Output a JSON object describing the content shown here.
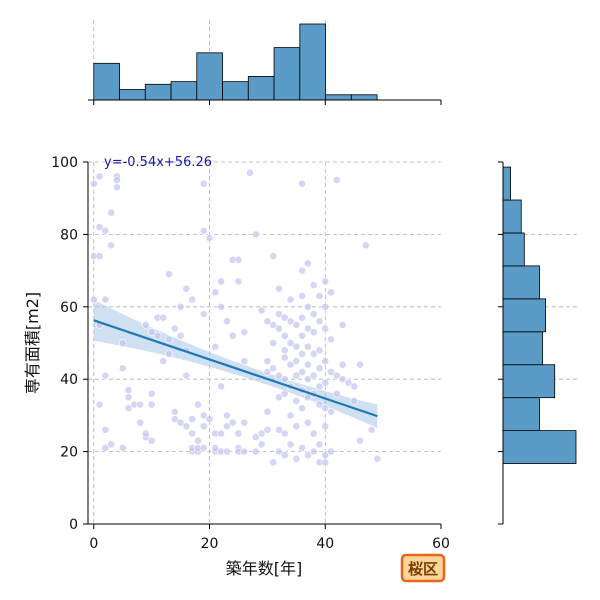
{
  "chart_data": {
    "type": "scatter",
    "title": "",
    "xlabel": "築年数[年]",
    "ylabel": "専有面積[m2]",
    "xlim": [
      -1,
      60
    ],
    "ylim": [
      0,
      100
    ],
    "xticks": [
      0,
      20,
      40,
      60
    ],
    "yticks": [
      0,
      20,
      40,
      60,
      80,
      100
    ],
    "grid": true,
    "regression": {
      "equation": "y=-0.54x+56.26",
      "slope": -0.54,
      "intercept": 56.26,
      "x_range": [
        0,
        49
      ]
    },
    "points": [
      [
        0,
        94
      ],
      [
        1,
        96
      ],
      [
        1,
        82
      ],
      [
        2,
        81
      ],
      [
        0,
        74
      ],
      [
        1,
        74
      ],
      [
        2,
        62
      ],
      [
        0,
        62
      ],
      [
        1,
        33
      ],
      [
        2,
        41
      ],
      [
        2,
        26
      ],
      [
        2,
        21
      ],
      [
        3,
        22
      ],
      [
        1,
        55
      ],
      [
        3,
        86
      ],
      [
        4,
        96
      ],
      [
        4,
        95
      ],
      [
        4,
        93
      ],
      [
        3,
        77
      ],
      [
        5,
        50
      ],
      [
        5,
        43
      ],
      [
        5,
        21
      ],
      [
        6,
        37
      ],
      [
        6,
        32
      ],
      [
        6,
        35
      ],
      [
        7,
        33
      ],
      [
        8,
        33
      ],
      [
        8,
        28
      ],
      [
        9,
        24
      ],
      [
        9,
        25
      ],
      [
        10,
        23
      ],
      [
        10,
        33
      ],
      [
        10,
        36
      ],
      [
        9,
        55
      ],
      [
        10,
        53
      ],
      [
        11,
        52
      ],
      [
        11,
        57
      ],
      [
        12,
        57
      ],
      [
        12,
        45
      ],
      [
        13,
        47
      ],
      [
        13,
        51
      ],
      [
        13,
        69
      ],
      [
        14,
        54
      ],
      [
        14,
        31
      ],
      [
        14,
        29
      ],
      [
        15,
        28
      ],
      [
        15,
        52
      ],
      [
        15,
        60
      ],
      [
        16,
        65
      ],
      [
        16,
        41
      ],
      [
        16,
        48
      ],
      [
        16,
        27
      ],
      [
        17,
        20
      ],
      [
        17,
        21
      ],
      [
        17,
        25
      ],
      [
        17,
        29
      ],
      [
        17,
        62
      ],
      [
        18,
        33
      ],
      [
        18,
        23
      ],
      [
        18,
        20
      ],
      [
        18,
        21
      ],
      [
        19,
        21
      ],
      [
        19,
        58
      ],
      [
        19,
        94
      ],
      [
        19,
        81
      ],
      [
        19,
        30
      ],
      [
        19,
        27
      ],
      [
        20,
        79
      ],
      [
        20,
        29
      ],
      [
        21,
        20
      ],
      [
        21,
        21
      ],
      [
        21,
        25
      ],
      [
        21,
        49
      ],
      [
        21,
        64
      ],
      [
        22,
        67
      ],
      [
        22,
        60
      ],
      [
        22,
        38
      ],
      [
        22,
        25
      ],
      [
        22,
        20
      ],
      [
        23,
        27
      ],
      [
        23,
        30
      ],
      [
        23,
        20
      ],
      [
        23,
        56
      ],
      [
        24,
        73
      ],
      [
        24,
        28
      ],
      [
        24,
        52
      ],
      [
        25,
        73
      ],
      [
        25,
        67
      ],
      [
        25,
        21
      ],
      [
        25,
        20
      ],
      [
        25,
        25
      ],
      [
        26,
        28
      ],
      [
        26,
        20
      ],
      [
        26,
        45
      ],
      [
        26,
        53
      ],
      [
        27,
        97
      ],
      [
        28,
        80
      ],
      [
        28,
        24
      ],
      [
        28,
        20
      ],
      [
        29,
        25
      ],
      [
        29,
        59
      ],
      [
        29,
        22
      ],
      [
        30,
        31
      ],
      [
        30,
        26
      ],
      [
        30,
        42
      ],
      [
        30,
        45
      ],
      [
        30,
        56
      ],
      [
        31,
        74
      ],
      [
        31,
        55
      ],
      [
        31,
        50
      ],
      [
        31,
        43
      ],
      [
        31,
        17
      ],
      [
        32,
        65
      ],
      [
        32,
        58
      ],
      [
        32,
        54
      ],
      [
        32,
        41
      ],
      [
        32,
        35
      ],
      [
        32,
        26
      ],
      [
        32,
        20
      ],
      [
        33,
        57
      ],
      [
        33,
        52
      ],
      [
        33,
        48
      ],
      [
        33,
        46
      ],
      [
        33,
        40
      ],
      [
        33,
        36
      ],
      [
        33,
        25
      ],
      [
        33,
        19
      ],
      [
        34,
        62
      ],
      [
        34,
        56
      ],
      [
        34,
        50
      ],
      [
        34,
        44
      ],
      [
        34,
        38
      ],
      [
        34,
        30
      ],
      [
        34,
        22
      ],
      [
        35,
        55
      ],
      [
        35,
        49
      ],
      [
        35,
        45
      ],
      [
        35,
        41
      ],
      [
        35,
        34
      ],
      [
        35,
        27
      ],
      [
        35,
        18
      ],
      [
        36,
        70
      ],
      [
        36,
        94
      ],
      [
        36,
        63
      ],
      [
        36,
        57
      ],
      [
        36,
        52
      ],
      [
        36,
        47
      ],
      [
        36,
        42
      ],
      [
        36,
        37
      ],
      [
        36,
        32
      ],
      [
        36,
        21
      ],
      [
        37,
        72
      ],
      [
        37,
        60
      ],
      [
        37,
        54
      ],
      [
        37,
        49
      ],
      [
        37,
        44
      ],
      [
        37,
        40
      ],
      [
        37,
        35
      ],
      [
        37,
        28
      ],
      [
        37,
        19
      ],
      [
        38,
        66
      ],
      [
        38,
        58
      ],
      [
        38,
        53
      ],
      [
        38,
        47
      ],
      [
        38,
        41
      ],
      [
        38,
        36
      ],
      [
        38,
        25
      ],
      [
        38,
        20
      ],
      [
        39,
        63
      ],
      [
        39,
        56
      ],
      [
        39,
        48
      ],
      [
        39,
        43
      ],
      [
        39,
        38
      ],
      [
        39,
        33
      ],
      [
        39,
        22
      ],
      [
        39,
        17
      ],
      [
        40,
        67
      ],
      [
        40,
        60
      ],
      [
        40,
        54
      ],
      [
        40,
        45
      ],
      [
        40,
        39
      ],
      [
        40,
        32
      ],
      [
        40,
        27
      ],
      [
        40,
        19
      ],
      [
        40,
        17
      ],
      [
        41,
        64
      ],
      [
        41,
        51
      ],
      [
        41,
        42
      ],
      [
        41,
        31
      ],
      [
        41,
        20
      ],
      [
        42,
        95
      ],
      [
        42,
        41
      ],
      [
        42,
        36
      ],
      [
        43,
        44
      ],
      [
        43,
        55
      ],
      [
        43,
        40
      ],
      [
        44,
        39
      ],
      [
        45,
        38
      ],
      [
        45,
        34
      ],
      [
        46,
        23
      ],
      [
        46,
        44
      ],
      [
        47,
        77
      ],
      [
        48,
        26
      ],
      [
        49,
        18
      ]
    ],
    "histogram_x": {
      "bin_edges": [
        0,
        4.45,
        8.9,
        13.35,
        17.8,
        22.25,
        26.7,
        31.15,
        35.6,
        40.05,
        44.5,
        48.95
      ],
      "counts": [
        14,
        4,
        6,
        7,
        18,
        7,
        9,
        20,
        29,
        2,
        2
      ]
    },
    "histogram_y": {
      "bin_edges": [
        16.7,
        25.8,
        34.9,
        44,
        53.1,
        62.2,
        71.3,
        80.4,
        89.5,
        98.6
      ],
      "counts": [
        48,
        24,
        34,
        26,
        28,
        24,
        14,
        12,
        5
      ]
    }
  },
  "badge": {
    "label": "桜区",
    "bg": "#fbd59a",
    "border": "#e8661c"
  },
  "colors": {
    "point_fill": "#c2c4ee",
    "point_dark": "#3a3ab0",
    "line": "#1f77b4",
    "band": "#a7c7e7",
    "bar": "#5b9bc8",
    "grid": "#b0b0b0"
  }
}
